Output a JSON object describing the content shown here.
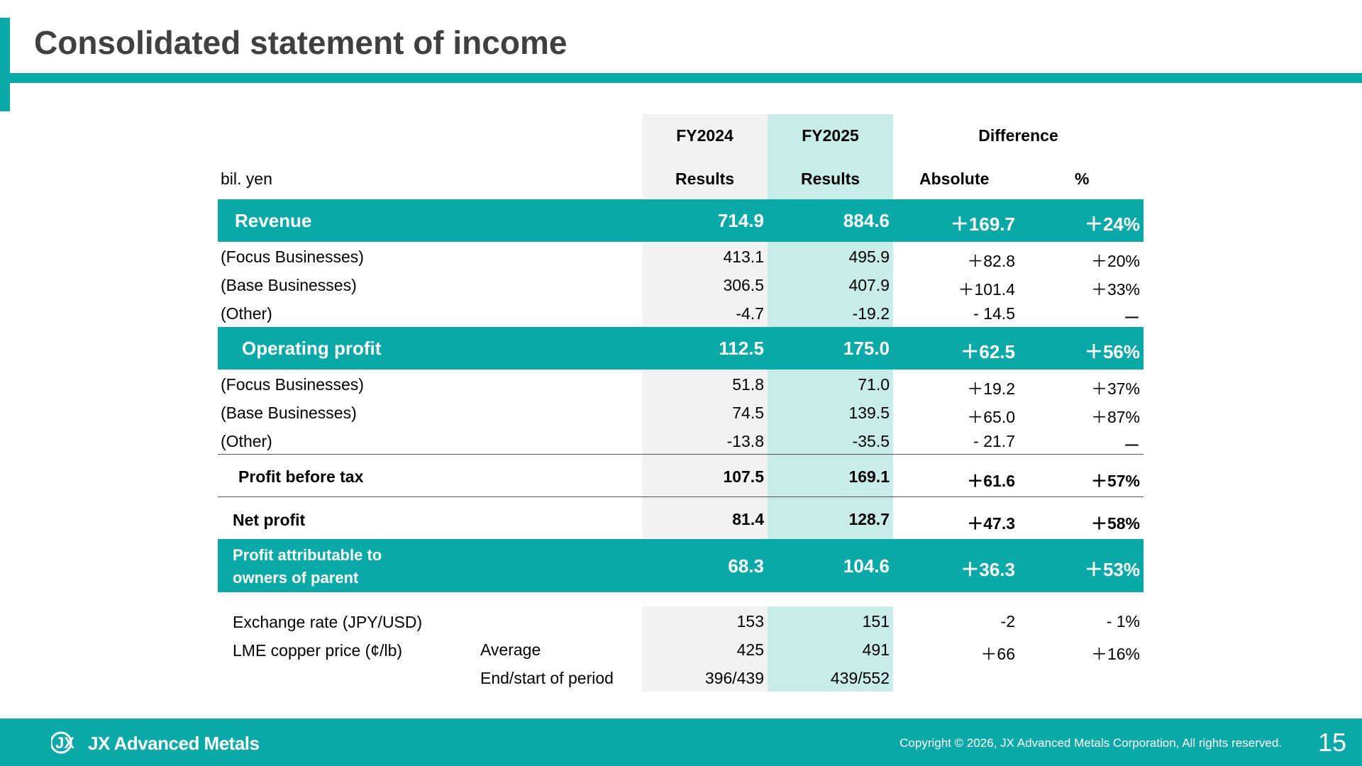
{
  "title": "Consolidated statement of income",
  "header": {
    "unit": "bil. yen",
    "fy2024": "FY2024",
    "fy2025": "FY2025",
    "difference": "Difference",
    "results24": "Results",
    "results25": "Results",
    "absolute": "Absolute",
    "percent": "%"
  },
  "revenue": {
    "label": "Revenue",
    "fy24": "714.9",
    "fy25": "884.6",
    "abs": "＋169.7",
    "pct": "＋24%"
  },
  "revenue_sub": [
    {
      "label": "(Focus Businesses)",
      "fy24": "413.1",
      "fy25": "495.9",
      "abs": "＋82.8",
      "pct": "＋20%"
    },
    {
      "label": "(Base Businesses)",
      "fy24": "306.5",
      "fy25": "407.9",
      "abs": "＋101.4",
      "pct": "＋33%"
    },
    {
      "label": "(Other)",
      "fy24": "-4.7",
      "fy25": "-19.2",
      "abs": "- 14.5",
      "pct": "ー"
    }
  ],
  "operating": {
    "label": "Operating profit",
    "fy24": "112.5",
    "fy25": "175.0",
    "abs": "＋62.5",
    "pct": "＋56%"
  },
  "operating_sub": [
    {
      "label": "(Focus Businesses)",
      "fy24": "51.8",
      "fy25": "71.0",
      "abs": "＋19.2",
      "pct": "＋37%"
    },
    {
      "label": "(Base Businesses)",
      "fy24": "74.5",
      "fy25": "139.5",
      "abs": "＋65.0",
      "pct": "＋87%"
    },
    {
      "label": "(Other)",
      "fy24": "-13.8",
      "fy25": "-35.5",
      "abs": "- 21.7",
      "pct": "ー"
    }
  ],
  "pbt": {
    "label": "Profit  before tax",
    "fy24": "107.5",
    "fy25": "169.1",
    "abs": "＋61.6",
    "pct": "＋57%"
  },
  "net": {
    "label": "Net profit",
    "fy24": "81.4",
    "fy25": "128.7",
    "abs": "＋47.3",
    "pct": "＋58%"
  },
  "attrib": {
    "label1": "Profit attributable to",
    "label2": "owners of parent",
    "fy24": "68.3",
    "fy25": "104.6",
    "abs": "＋36.3",
    "pct": "＋53%"
  },
  "fx": {
    "label": "Exchange rate (JPY/USD)",
    "fy24": "153",
    "fy25": "151",
    "abs": "-2",
    "pct": "- 1%"
  },
  "lme": {
    "label": "LME copper price (¢/lb)",
    "avg_label": "Average",
    "avg_fy24": "425",
    "avg_fy25": "491",
    "avg_abs": "＋66",
    "avg_pct": "＋16%",
    "end_label": "End/start of period",
    "end_fy24": "396/439",
    "end_fy25": "439/552"
  },
  "footer": {
    "logo_mark": "JX",
    "logo_text": "JX Advanced Metals",
    "copyright": "Copyright © 2026, JX Advanced Metals Corporation, All rights reserved.",
    "page": "15"
  },
  "colors": {
    "accent": "#0aa8a7",
    "fy24_bg": "#f2f2f2",
    "fy25_bg": "#c8ece7"
  }
}
